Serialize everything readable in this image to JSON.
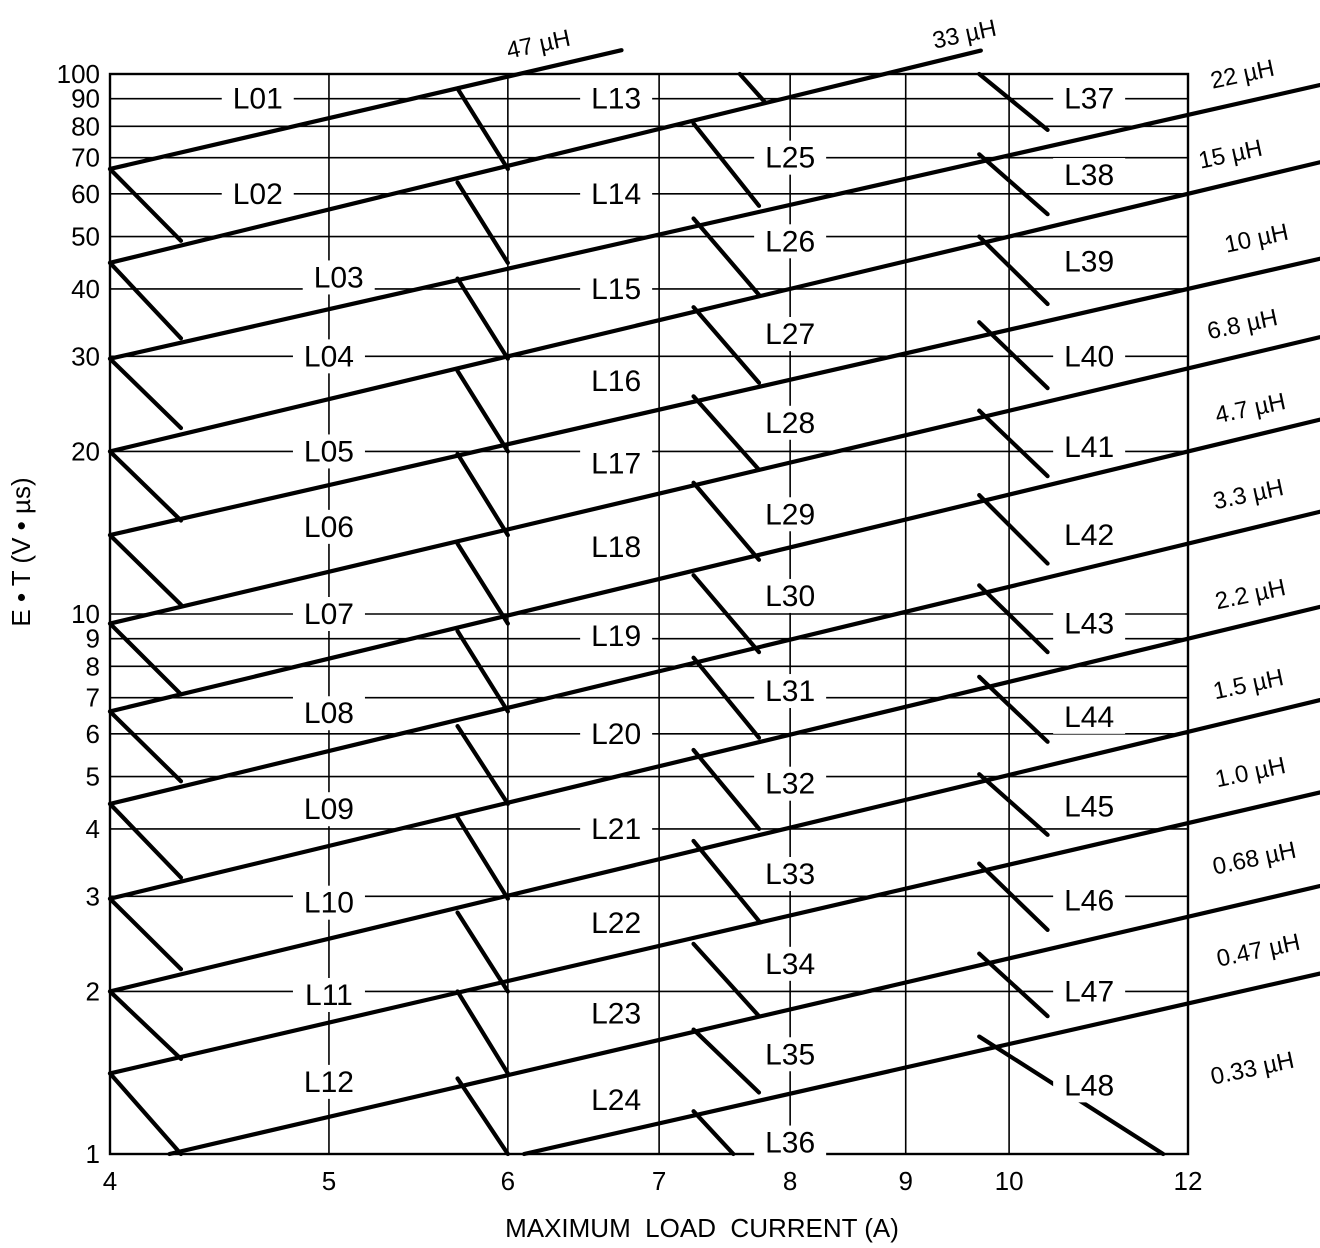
{
  "chart_data": {
    "type": "line",
    "title": "",
    "xlabel": "MAXIMUM  LOAD  CURRENT (A)",
    "ylabel": "E • T (V • µs)",
    "xscale": "log",
    "yscale": "log",
    "xlim": [
      4,
      12
    ],
    "ylim": [
      1,
      100
    ],
    "grid": true,
    "x_ticks": [
      {
        "value": 4,
        "label": "4"
      },
      {
        "value": 5,
        "label": "5"
      },
      {
        "value": 6,
        "label": "6"
      },
      {
        "value": 7,
        "label": "7"
      },
      {
        "value": 8,
        "label": "8"
      },
      {
        "value": 9,
        "label": "9"
      },
      {
        "value": 10,
        "label": "10"
      },
      {
        "value": 12,
        "label": "12"
      }
    ],
    "y_ticks": [
      {
        "value": 1,
        "label": "1"
      },
      {
        "value": 2,
        "label": "2"
      },
      {
        "value": 3,
        "label": "3"
      },
      {
        "value": 4,
        "label": "4"
      },
      {
        "value": 5,
        "label": "5"
      },
      {
        "value": 6,
        "label": "6"
      },
      {
        "value": 7,
        "label": "7"
      },
      {
        "value": 8,
        "label": "8"
      },
      {
        "value": 9,
        "label": "9"
      },
      {
        "value": 10,
        "label": "10"
      },
      {
        "value": 20,
        "label": "20"
      },
      {
        "value": 30,
        "label": "30"
      },
      {
        "value": 40,
        "label": "40"
      },
      {
        "value": 50,
        "label": "50"
      },
      {
        "value": 60,
        "label": "60"
      },
      {
        "value": 70,
        "label": "70"
      },
      {
        "value": 80,
        "label": "80"
      },
      {
        "value": 90,
        "label": "90"
      },
      {
        "value": 100,
        "label": "100"
      }
    ],
    "inductance_lines": [
      {
        "label": "47 µH",
        "points": [
          [
            4,
            66.7
          ],
          [
            6.1,
            100.5
          ]
        ]
      },
      {
        "label": "33 µH",
        "points": [
          [
            4,
            44.7
          ],
          [
            8.8,
            99.9
          ]
        ]
      },
      {
        "label": "22 µH",
        "points": [
          [
            4,
            29.7
          ],
          [
            12,
            84.0
          ]
        ]
      },
      {
        "label": "15 µH",
        "points": [
          [
            4,
            20.0
          ],
          [
            12,
            60.0
          ]
        ]
      },
      {
        "label": "10 µH",
        "points": [
          [
            4,
            14.0
          ],
          [
            12,
            40.0
          ]
        ]
      },
      {
        "label": "6.8 µH",
        "points": [
          [
            4,
            9.6
          ],
          [
            12,
            28.5
          ]
        ]
      },
      {
        "label": "4.7 µH",
        "points": [
          [
            4,
            6.6
          ],
          [
            12,
            20.0
          ]
        ]
      },
      {
        "label": "3.3 µH",
        "points": [
          [
            4,
            4.45
          ],
          [
            12,
            13.5
          ]
        ]
      },
      {
        "label": "2.2 µH",
        "points": [
          [
            4,
            2.97
          ],
          [
            12,
            9.0
          ]
        ]
      },
      {
        "label": "1.5 µH",
        "points": [
          [
            4,
            2.0
          ],
          [
            12,
            6.05
          ]
        ]
      },
      {
        "label": "1.0 µH",
        "points": [
          [
            4,
            1.41
          ],
          [
            12,
            4.1
          ]
        ]
      },
      {
        "label": "0.68 µH",
        "points": [
          [
            4.25,
            1.0
          ],
          [
            12,
            2.75
          ]
        ]
      },
      {
        "label": "0.47 µH",
        "points": [
          [
            6.1,
            1.0
          ],
          [
            12,
            1.9
          ]
        ]
      },
      {
        "label": "0.33 µH",
        "points": []
      }
    ],
    "boundary_segments": [
      [
        [
          4,
          66.7
        ],
        [
          4.3,
          49.1
        ]
      ],
      [
        [
          4,
          44.7
        ],
        [
          4.3,
          32.4
        ]
      ],
      [
        [
          4,
          29.7
        ],
        [
          4.3,
          22.1
        ]
      ],
      [
        [
          4,
          20.0
        ],
        [
          4.3,
          14.9
        ]
      ],
      [
        [
          4,
          14.0
        ],
        [
          4.3,
          10.4
        ]
      ],
      [
        [
          4,
          9.6
        ],
        [
          4.3,
          7.1
        ]
      ],
      [
        [
          4,
          6.6
        ],
        [
          4.3,
          4.9
        ]
      ],
      [
        [
          4,
          4.45
        ],
        [
          4.3,
          3.25
        ]
      ],
      [
        [
          4,
          2.97
        ],
        [
          4.3,
          2.2
        ]
      ],
      [
        [
          4,
          2.0
        ],
        [
          4.3,
          1.5
        ]
      ],
      [
        [
          4,
          1.41
        ],
        [
          4.3,
          1.0
        ]
      ],
      [
        [
          5.7,
          94.0
        ],
        [
          6.0,
          66.7
        ]
      ],
      [
        [
          5.7,
          63.0
        ],
        [
          6.0,
          44.7
        ]
      ],
      [
        [
          5.7,
          41.8
        ],
        [
          6.0,
          29.7
        ]
      ],
      [
        [
          5.7,
          28.2
        ],
        [
          6.0,
          20.0
        ]
      ],
      [
        [
          5.7,
          19.8
        ],
        [
          6.0,
          14.0
        ]
      ],
      [
        [
          5.7,
          13.5
        ],
        [
          6.0,
          9.6
        ]
      ],
      [
        [
          5.7,
          9.3
        ],
        [
          6.0,
          6.6
        ]
      ],
      [
        [
          5.7,
          6.2
        ],
        [
          6.0,
          4.45
        ]
      ],
      [
        [
          5.7,
          4.2
        ],
        [
          6.0,
          2.97
        ]
      ],
      [
        [
          5.7,
          2.8
        ],
        [
          6.0,
          2.0
        ]
      ],
      [
        [
          5.7,
          2.0
        ],
        [
          6.0,
          1.41
        ]
      ],
      [
        [
          5.7,
          1.38
        ],
        [
          6.0,
          1.0
        ]
      ],
      [
        [
          7.6,
          100
        ],
        [
          7.8,
          88.5
        ]
      ],
      [
        [
          7.25,
          81.0
        ],
        [
          7.75,
          57.0
        ]
      ],
      [
        [
          7.25,
          54.0
        ],
        [
          7.75,
          39.0
        ]
      ],
      [
        [
          7.25,
          37.0
        ],
        [
          7.75,
          26.8
        ]
      ],
      [
        [
          7.25,
          25.3
        ],
        [
          7.75,
          18.5
        ]
      ],
      [
        [
          7.25,
          17.5
        ],
        [
          7.75,
          12.6
        ]
      ],
      [
        [
          7.25,
          11.8
        ],
        [
          7.75,
          8.5
        ]
      ],
      [
        [
          7.25,
          8.3
        ],
        [
          7.75,
          5.9
        ]
      ],
      [
        [
          7.25,
          5.6
        ],
        [
          7.75,
          4.0
        ]
      ],
      [
        [
          7.25,
          3.8
        ],
        [
          7.75,
          2.7
        ]
      ],
      [
        [
          7.25,
          2.45
        ],
        [
          7.75,
          1.8
        ]
      ],
      [
        [
          7.25,
          1.7
        ],
        [
          7.75,
          1.3
        ]
      ],
      [
        [
          7.25,
          1.2
        ],
        [
          7.55,
          1.0
        ]
      ],
      [
        [
          9.7,
          100
        ],
        [
          10.4,
          78.8
        ]
      ],
      [
        [
          9.7,
          71.0
        ],
        [
          10.4,
          55.0
        ]
      ],
      [
        [
          9.7,
          50.0
        ],
        [
          10.4,
          37.5
        ]
      ],
      [
        [
          9.7,
          34.7
        ],
        [
          10.4,
          26.2
        ]
      ],
      [
        [
          9.7,
          23.8
        ],
        [
          10.4,
          18.0
        ]
      ],
      [
        [
          9.7,
          16.6
        ],
        [
          10.4,
          12.4
        ]
      ],
      [
        [
          9.7,
          11.3
        ],
        [
          10.4,
          8.5
        ]
      ],
      [
        [
          9.7,
          7.65
        ],
        [
          10.4,
          5.8
        ]
      ],
      [
        [
          9.7,
          5.05
        ],
        [
          10.4,
          3.9
        ]
      ],
      [
        [
          9.7,
          3.45
        ],
        [
          10.4,
          2.6
        ]
      ],
      [
        [
          9.7,
          2.35
        ],
        [
          10.4,
          1.8
        ]
      ],
      [
        [
          9.7,
          1.65
        ],
        [
          11.7,
          1.0
        ]
      ]
    ],
    "regions": [
      {
        "name": "L01",
        "x": 4.65,
        "y": 90
      },
      {
        "name": "L02",
        "x": 4.65,
        "y": 60
      },
      {
        "name": "L03",
        "x": 5.05,
        "y": 42
      },
      {
        "name": "L04",
        "x": 5.0,
        "y": 30
      },
      {
        "name": "L05",
        "x": 5.0,
        "y": 20
      },
      {
        "name": "L06",
        "x": 5.0,
        "y": 14.5
      },
      {
        "name": "L07",
        "x": 5.0,
        "y": 10
      },
      {
        "name": "L08",
        "x": 5.0,
        "y": 6.55
      },
      {
        "name": "L09",
        "x": 5.0,
        "y": 4.35
      },
      {
        "name": "L10",
        "x": 5.0,
        "y": 2.92
      },
      {
        "name": "L11",
        "x": 5.0,
        "y": 1.97
      },
      {
        "name": "L12",
        "x": 5.0,
        "y": 1.36
      },
      {
        "name": "L13",
        "x": 6.7,
        "y": 90
      },
      {
        "name": "L14",
        "x": 6.7,
        "y": 60
      },
      {
        "name": "L15",
        "x": 6.7,
        "y": 40
      },
      {
        "name": "L16",
        "x": 6.7,
        "y": 27
      },
      {
        "name": "L17",
        "x": 6.7,
        "y": 19
      },
      {
        "name": "L18",
        "x": 6.7,
        "y": 13.3
      },
      {
        "name": "L19",
        "x": 6.7,
        "y": 9.1
      },
      {
        "name": "L20",
        "x": 6.7,
        "y": 6.0
      },
      {
        "name": "L21",
        "x": 6.7,
        "y": 4.0
      },
      {
        "name": "L22",
        "x": 6.7,
        "y": 2.68
      },
      {
        "name": "L23",
        "x": 6.7,
        "y": 1.82
      },
      {
        "name": "L24",
        "x": 6.7,
        "y": 1.26
      },
      {
        "name": "L25",
        "x": 8.0,
        "y": 70
      },
      {
        "name": "L26",
        "x": 8.0,
        "y": 49
      },
      {
        "name": "L27",
        "x": 8.0,
        "y": 33
      },
      {
        "name": "L28",
        "x": 8.0,
        "y": 22.6
      },
      {
        "name": "L29",
        "x": 8.0,
        "y": 15.3
      },
      {
        "name": "L30",
        "x": 8.0,
        "y": 10.8
      },
      {
        "name": "L31",
        "x": 8.0,
        "y": 7.2
      },
      {
        "name": "L32",
        "x": 8.0,
        "y": 4.85
      },
      {
        "name": "L33",
        "x": 8.0,
        "y": 3.3
      },
      {
        "name": "L34",
        "x": 8.0,
        "y": 2.25
      },
      {
        "name": "L35",
        "x": 8.0,
        "y": 1.53
      },
      {
        "name": "L36",
        "x": 8.0,
        "y": 1.05
      },
      {
        "name": "L37",
        "x": 10.85,
        "y": 90
      },
      {
        "name": "L38",
        "x": 10.85,
        "y": 65
      },
      {
        "name": "L39",
        "x": 10.85,
        "y": 45
      },
      {
        "name": "L40",
        "x": 10.85,
        "y": 30
      },
      {
        "name": "L41",
        "x": 10.85,
        "y": 20.4
      },
      {
        "name": "L42",
        "x": 10.85,
        "y": 14
      },
      {
        "name": "L43",
        "x": 10.85,
        "y": 9.6
      },
      {
        "name": "L44",
        "x": 10.85,
        "y": 6.45
      },
      {
        "name": "L45",
        "x": 10.85,
        "y": 4.4
      },
      {
        "name": "L46",
        "x": 10.85,
        "y": 2.95
      },
      {
        "name": "L47",
        "x": 10.85,
        "y": 2.0
      },
      {
        "name": "L48",
        "x": 10.85,
        "y": 1.34
      }
    ]
  }
}
